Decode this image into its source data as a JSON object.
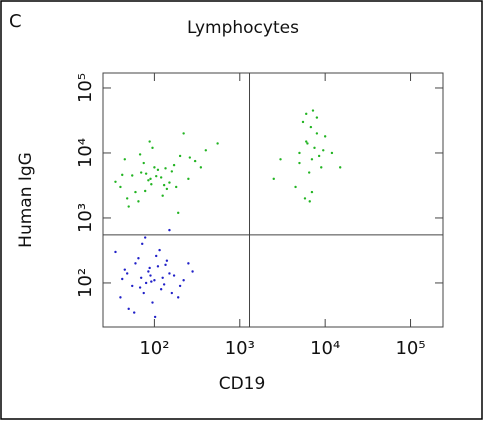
{
  "chart_data": {
    "type": "scatter",
    "panel_label": "C",
    "title": "Lymphocytes",
    "x_label": "CD19",
    "y_label": "Human IgG",
    "xscale": "log",
    "yscale": "log",
    "xlim": [
      25,
      240000
    ],
    "ylim": [
      21,
      170000
    ],
    "xticks": [
      {
        "value": 100,
        "label": "10²"
      },
      {
        "value": 1000,
        "label": "10³"
      },
      {
        "value": 10000,
        "label": "10⁴"
      },
      {
        "value": 100000,
        "label": "10⁵"
      }
    ],
    "yticks": [
      {
        "value": 100,
        "label": "10²"
      },
      {
        "value": 1000,
        "label": "10³"
      },
      {
        "value": 10000,
        "label": "10⁴"
      },
      {
        "value": 100000,
        "label": "10⁵"
      }
    ],
    "quadrants": {
      "x": 1300,
      "y": 550
    },
    "series": [
      {
        "color": "#2020c8",
        "x": [
          40,
          55,
          70,
          85,
          100,
          120,
          150,
          60,
          75,
          90,
          110,
          130,
          45,
          65,
          80,
          95,
          140,
          170,
          200,
          35,
          50,
          88,
          105,
          125,
          160,
          220,
          280,
          72,
          58,
          115,
          48,
          68,
          92,
          135,
          190,
          250,
          42,
          78,
          102,
          150
        ],
        "values": [
          60,
          90,
          120,
          150,
          110,
          80,
          140,
          200,
          70,
          130,
          180,
          95,
          160,
          240,
          100,
          50,
          220,
          130,
          90,
          300,
          40,
          170,
          260,
          120,
          70,
          110,
          150,
          400,
          35,
          320,
          140,
          85,
          105,
          190,
          60,
          200,
          115,
          500,
          30,
          650
        ]
      },
      {
        "color": "#22b422",
        "x": [
          40,
          55,
          70,
          85,
          100,
          120,
          150,
          60,
          75,
          90,
          110,
          130,
          45,
          65,
          80,
          95,
          140,
          170,
          200,
          35,
          50,
          88,
          105,
          125,
          160,
          220,
          300,
          400,
          550,
          250,
          48,
          68,
          92,
          135,
          190,
          350,
          42,
          78,
          180,
          260
        ],
        "values": [
          3000,
          4500,
          5000,
          3800,
          6000,
          4200,
          3500,
          2500,
          7000,
          4000,
          5500,
          3200,
          8000,
          1800,
          4800,
          12000,
          2800,
          6500,
          9000,
          3600,
          1500,
          15000,
          4400,
          2200,
          5200,
          20000,
          7500,
          11000,
          14000,
          4000,
          2000,
          9500,
          3300,
          5800,
          1200,
          6000,
          4600,
          2600,
          3000,
          8500
        ]
      },
      {
        "color": "#22b422",
        "x": [
          5000,
          6000,
          7000,
          8000,
          6500,
          5500,
          7500,
          9000,
          4500,
          10000,
          6000,
          7000,
          8500,
          5000,
          6800,
          3000,
          12000,
          7200,
          5800,
          6200,
          2500,
          15000,
          8000,
          9500,
          6600
        ],
        "values": [
          10000,
          15000,
          8000,
          20000,
          5000,
          30000,
          12000,
          6000,
          3000,
          18000,
          40000,
          2500,
          9000,
          7000,
          25000,
          8000,
          10000,
          45000,
          2000,
          14000,
          4000,
          6000,
          35000,
          11000,
          1800
        ]
      }
    ]
  }
}
